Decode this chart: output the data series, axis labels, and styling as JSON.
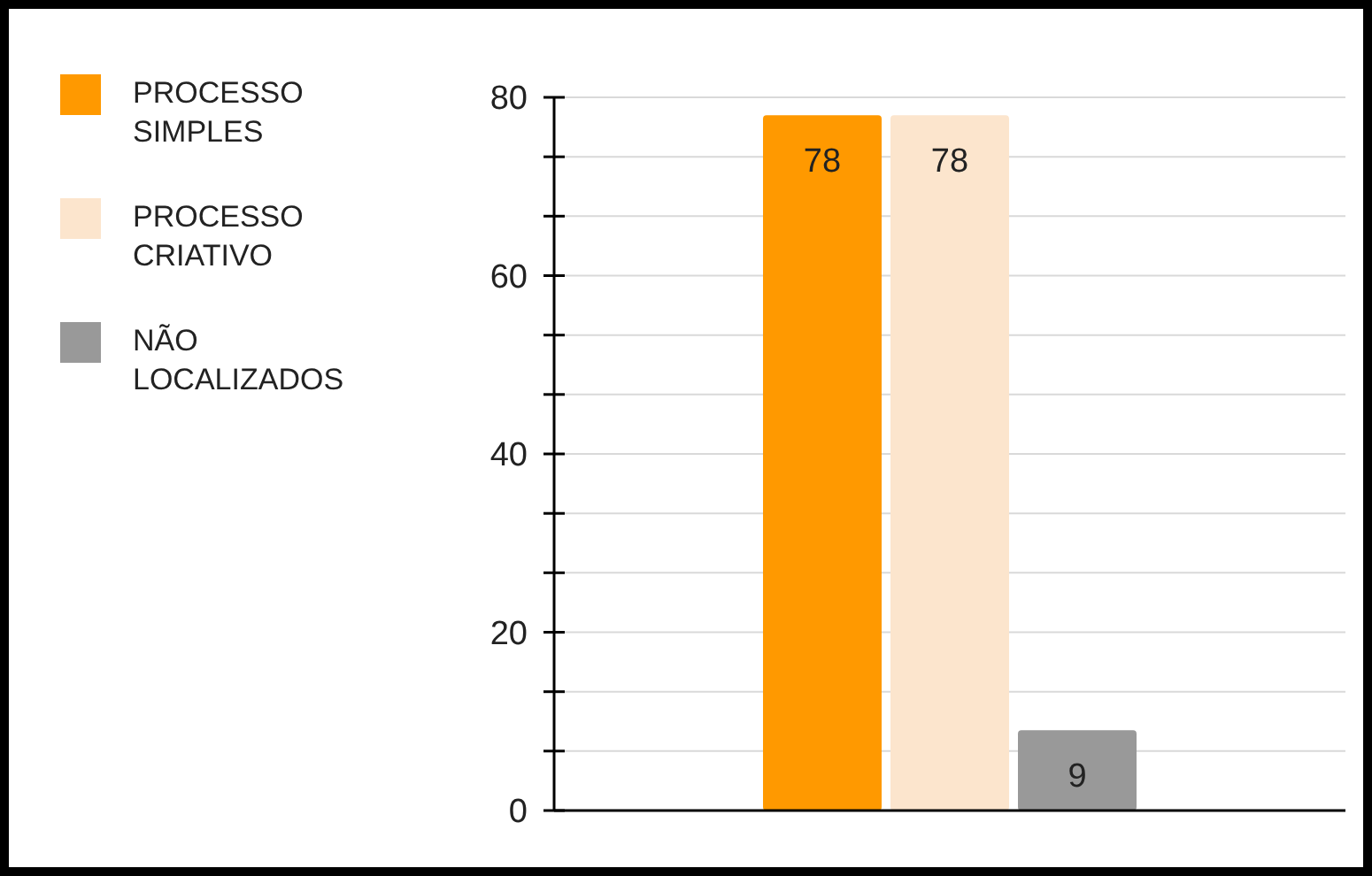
{
  "chart_data": {
    "type": "bar",
    "categories": [
      null
    ],
    "series": [
      {
        "name": "PROCESSO SIMPLES",
        "color": "#ff9900",
        "values": [
          78
        ]
      },
      {
        "name": "PROCESSO CRIATIVO",
        "color": "#fce5cd",
        "values": [
          78
        ]
      },
      {
        "name": "NÃO LOCALIZADOS",
        "color": "#999999",
        "values": [
          9
        ]
      }
    ],
    "ylim": [
      0,
      80
    ],
    "yticks": [
      0,
      {
        "value": 6.67,
        "label": null
      },
      {
        "value": 13.33,
        "label": null
      },
      20,
      {
        "value": 26.67,
        "label": null
      },
      {
        "value": 33.33,
        "label": null
      },
      40,
      {
        "value": 46.67,
        "label": null
      },
      {
        "value": 53.33,
        "label": null
      },
      60,
      {
        "value": 66.67,
        "label": null
      },
      {
        "value": 73.33,
        "label": null
      },
      80
    ],
    "grid": "y",
    "legend": "left",
    "data_labels": true
  }
}
